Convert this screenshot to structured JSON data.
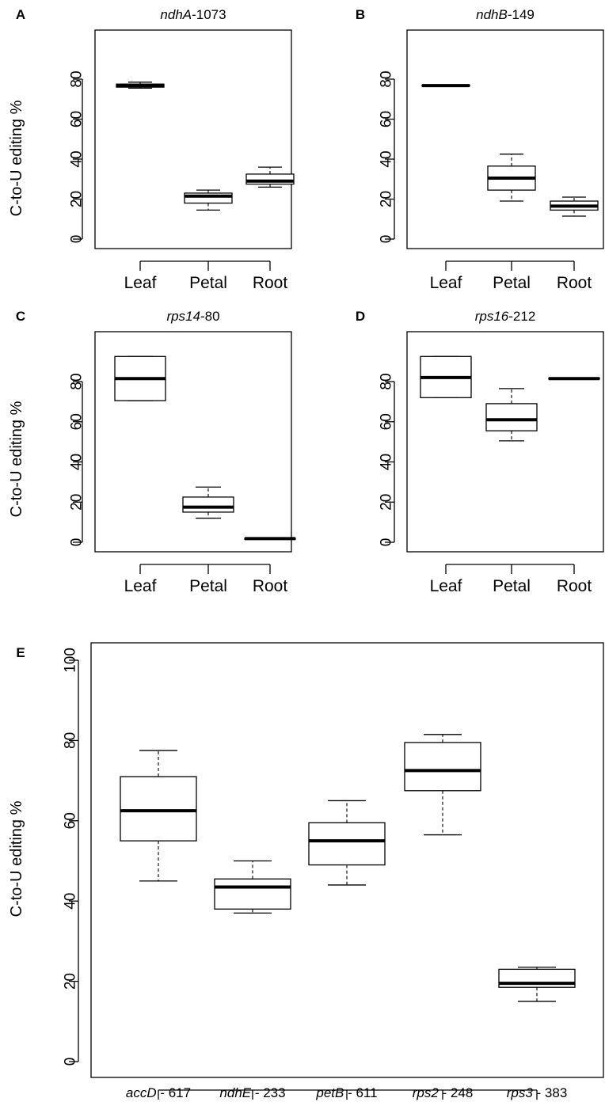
{
  "chart_data": [
    {
      "panel": "A",
      "type": "box",
      "title_italic": "ndhA",
      "title_rest": "-1073",
      "ylabel": "C-to-U editing %",
      "xlabel": "",
      "ylim": [
        0,
        100
      ],
      "yticks": [
        0,
        20,
        40,
        60,
        80
      ],
      "categories": [
        "Leaf",
        "Petal",
        "Root"
      ],
      "boxes": [
        {
          "min": 75.5,
          "q1": 76.0,
          "median": 77.0,
          "q3": 77.5,
          "max": 78.5
        },
        {
          "min": 14.5,
          "q1": 18.0,
          "median": 21.5,
          "q3": 23.0,
          "max": 24.5
        },
        {
          "min": 26.0,
          "q1": 27.5,
          "median": 29.0,
          "q3": 32.5,
          "max": 36.0
        }
      ]
    },
    {
      "panel": "B",
      "type": "box",
      "title_italic": "ndhB",
      "title_rest": "-149",
      "ylabel": "",
      "xlabel": "",
      "ylim": [
        0,
        100
      ],
      "yticks": [
        0,
        20,
        40,
        60,
        80
      ],
      "categories": [
        "Leaf",
        "Petal",
        "Root"
      ],
      "boxes": [
        {
          "min": 76.5,
          "q1": 76.5,
          "median": 76.8,
          "q3": 77.0,
          "max": 77.0
        },
        {
          "min": 19.0,
          "q1": 24.5,
          "median": 30.5,
          "q3": 36.5,
          "max": 42.5
        },
        {
          "min": 11.5,
          "q1": 14.5,
          "median": 16.5,
          "q3": 19.0,
          "max": 21.0
        }
      ]
    },
    {
      "panel": "C",
      "type": "box",
      "title_italic": "rps14",
      "title_rest": "-80",
      "ylabel": "C-to-U editing %",
      "xlabel": "",
      "ylim": [
        0,
        100
      ],
      "yticks": [
        0,
        20,
        40,
        60,
        80
      ],
      "categories": [
        "Leaf",
        "Petal",
        "Root"
      ],
      "boxes": [
        {
          "min": 70.5,
          "q1": 70.5,
          "median": 81.5,
          "q3": 92.5,
          "max": 92.5
        },
        {
          "min": 12.0,
          "q1": 15.0,
          "median": 17.5,
          "q3": 22.5,
          "max": 27.5
        },
        {
          "min": 1.5,
          "q1": 1.5,
          "median": 1.8,
          "q3": 2.0,
          "max": 2.0
        }
      ]
    },
    {
      "panel": "D",
      "type": "box",
      "title_italic": "rps16",
      "title_rest": "-212",
      "ylabel": "",
      "xlabel": "",
      "ylim": [
        0,
        100
      ],
      "yticks": [
        0,
        20,
        40,
        60,
        80
      ],
      "categories": [
        "Leaf",
        "Petal",
        "Root"
      ],
      "boxes": [
        {
          "min": 72.0,
          "q1": 72.0,
          "median": 82.0,
          "q3": 92.5,
          "max": 92.5
        },
        {
          "min": 50.5,
          "q1": 55.5,
          "median": 61.0,
          "q3": 69.0,
          "max": 76.5
        },
        {
          "min": 81.2,
          "q1": 81.2,
          "median": 81.5,
          "q3": 81.8,
          "max": 81.8
        }
      ]
    },
    {
      "panel": "E",
      "type": "box",
      "title_italic": "",
      "title_rest": "",
      "ylabel": "C-to-U editing %",
      "xlabel": "",
      "ylim": [
        0,
        100
      ],
      "yticks": [
        0,
        20,
        40,
        60,
        80,
        100
      ],
      "categories": [
        {
          "italic": "accD",
          "rest": " - 617"
        },
        {
          "italic": "ndhE",
          "rest": " - 233"
        },
        {
          "italic": "petB",
          "rest": " - 611"
        },
        {
          "italic": "rps2",
          "rest": " - 248"
        },
        {
          "italic": "rps3",
          "rest": " - 383"
        }
      ],
      "boxes": [
        {
          "min": 45.0,
          "q1": 55.0,
          "median": 62.5,
          "q3": 71.0,
          "max": 77.5
        },
        {
          "min": 37.0,
          "q1": 38.0,
          "median": 43.5,
          "q3": 45.5,
          "max": 50.0
        },
        {
          "min": 44.0,
          "q1": 49.0,
          "median": 55.0,
          "q3": 59.5,
          "max": 65.0
        },
        {
          "min": 56.5,
          "q1": 67.5,
          "median": 72.5,
          "q3": 79.5,
          "max": 81.5
        },
        {
          "min": 15.0,
          "q1": 18.5,
          "median": 19.5,
          "q3": 23.0,
          "max": 23.5
        }
      ]
    }
  ]
}
